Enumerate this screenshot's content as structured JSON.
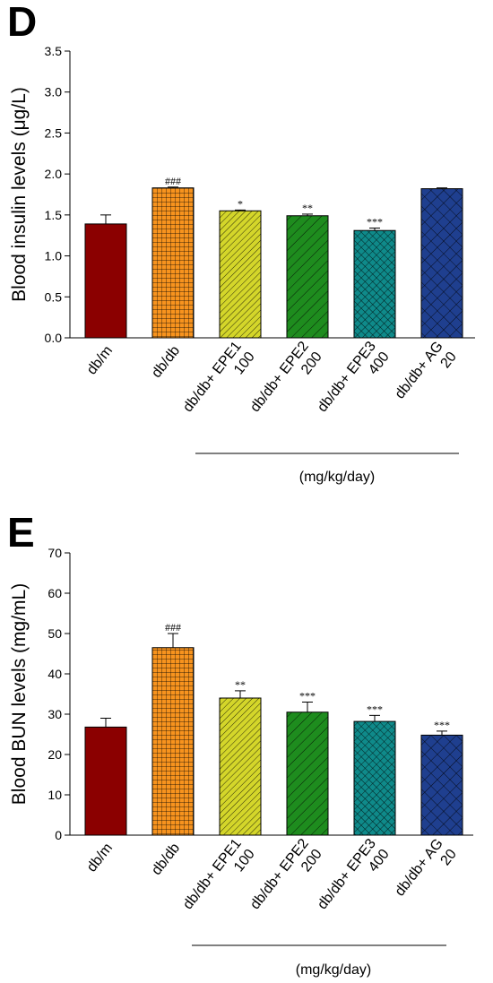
{
  "colors": {
    "db_m": "#8B0000",
    "db_db": "#F7931E",
    "epe1": "#D4D62A",
    "epe2": "#1E8C1E",
    "epe3": "#0F8A8A",
    "ag": "#1F3F8F"
  },
  "chart_data": [
    {
      "panel": "D",
      "type": "bar",
      "ylabel": "Blood insulin levels (μg/L)",
      "ylim": [
        0,
        3.5
      ],
      "yticks": [
        "0.0",
        "0.5",
        "1.0",
        "1.5",
        "2.0",
        "2.5",
        "3.0",
        "3.5"
      ],
      "categories": [
        [
          "db/m"
        ],
        [
          "db/db"
        ],
        [
          "db/db+ EPE1",
          "100"
        ],
        [
          "db/db+ EPE2",
          "200"
        ],
        [
          "db/db+ EPE3",
          "400"
        ],
        [
          "db/db+ AG",
          "20"
        ]
      ],
      "values": [
        1.39,
        1.83,
        1.55,
        1.49,
        1.31,
        1.82
      ],
      "errors": [
        0.11,
        0.01,
        0.01,
        0.02,
        0.03,
        0.01
      ],
      "significance": [
        "",
        "###",
        "*",
        "**",
        "***",
        ""
      ],
      "unit_label": "(mg/kg/day)",
      "grid": false
    },
    {
      "panel": "E",
      "type": "bar",
      "ylabel": "Blood BUN levels (mg/mL)",
      "ylim": [
        0,
        70
      ],
      "yticks": [
        "0",
        "10",
        "20",
        "30",
        "40",
        "50",
        "60",
        "70"
      ],
      "categories": [
        [
          "db/m"
        ],
        [
          "db/db"
        ],
        [
          "db/db+ EPE1",
          "100"
        ],
        [
          "db/db+ EPE2",
          "200"
        ],
        [
          "db/db+ EPE3",
          "400"
        ],
        [
          "db/db+ AG",
          "20"
        ]
      ],
      "values": [
        26.8,
        46.5,
        34.0,
        30.5,
        28.2,
        24.8
      ],
      "errors": [
        2.2,
        3.5,
        1.8,
        2.5,
        1.5,
        1.0
      ],
      "significance": [
        "",
        "###",
        "**",
        "***",
        "***",
        "***"
      ],
      "unit_label": "(mg/kg/day)",
      "grid": false
    }
  ]
}
